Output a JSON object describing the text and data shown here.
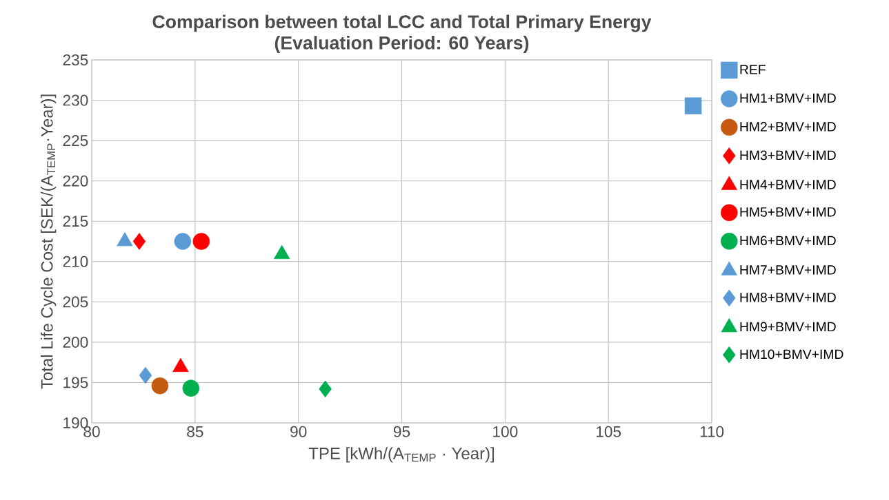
{
  "chart_data": {
    "type": "scatter",
    "title": "Comparison between total LCC and Total Primary Energy",
    "subtitle": "(Evaluation Period: 60 Years)",
    "xlabel": "TPE [kWh/(A$_{TEMP}$ · Year)]",
    "ylabel": "Total Life Cycle Cost [SEK/(A$_{TEMP}$·Year)]",
    "xlim": [
      80,
      110
    ],
    "xticks": [
      80,
      85,
      90,
      95,
      100,
      105,
      110
    ],
    "ylim": [
      190,
      235
    ],
    "yticks": [
      190,
      195,
      200,
      205,
      210,
      215,
      220,
      225,
      230,
      235
    ],
    "grid": true,
    "legend": "right",
    "series": [
      {
        "name": "REF",
        "color": "#5b9bd5",
        "marker": "square",
        "x": [
          109.1
        ],
        "values": [
          229.3
        ]
      },
      {
        "name": "HM1+BMV+IMD",
        "color": "#5b9bd5",
        "marker": "circle",
        "x": [
          84.4
        ],
        "values": [
          212.5
        ]
      },
      {
        "name": "HM2+BMV+IMD",
        "color": "#c55a11",
        "marker": "circle",
        "x": [
          83.3
        ],
        "values": [
          194.6
        ]
      },
      {
        "name": "HM3+BMV+IMD",
        "color": "#ff0000",
        "marker": "diamond",
        "x": [
          82.3
        ],
        "values": [
          212.5
        ]
      },
      {
        "name": "HM4+BMV+IMD",
        "color": "#ff0000",
        "marker": "triangle",
        "x": [
          84.3
        ],
        "values": [
          196.9
        ]
      },
      {
        "name": "HM5+BMV+IMD",
        "color": "#ff0000",
        "marker": "circle",
        "x": [
          85.3
        ],
        "values": [
          212.5
        ]
      },
      {
        "name": "HM6+BMV+IMD",
        "color": "#00b050",
        "marker": "circle",
        "x": [
          84.8
        ],
        "values": [
          194.3
        ]
      },
      {
        "name": "HM7+BMV+IMD",
        "color": "#5b9bd5",
        "marker": "triangle",
        "x": [
          81.6
        ],
        "values": [
          212.5
        ]
      },
      {
        "name": "HM8+BMV+IMD",
        "color": "#5b9bd5",
        "marker": "diamond",
        "x": [
          82.6
        ],
        "values": [
          195.9
        ]
      },
      {
        "name": "HM9+BMV+IMD",
        "color": "#00b050",
        "marker": "triangle",
        "x": [
          89.2
        ],
        "values": [
          210.9
        ]
      },
      {
        "name": "HM10+BMV+IMD",
        "color": "#00b050",
        "marker": "diamond",
        "x": [
          91.3
        ],
        "values": [
          194.2
        ]
      }
    ]
  }
}
